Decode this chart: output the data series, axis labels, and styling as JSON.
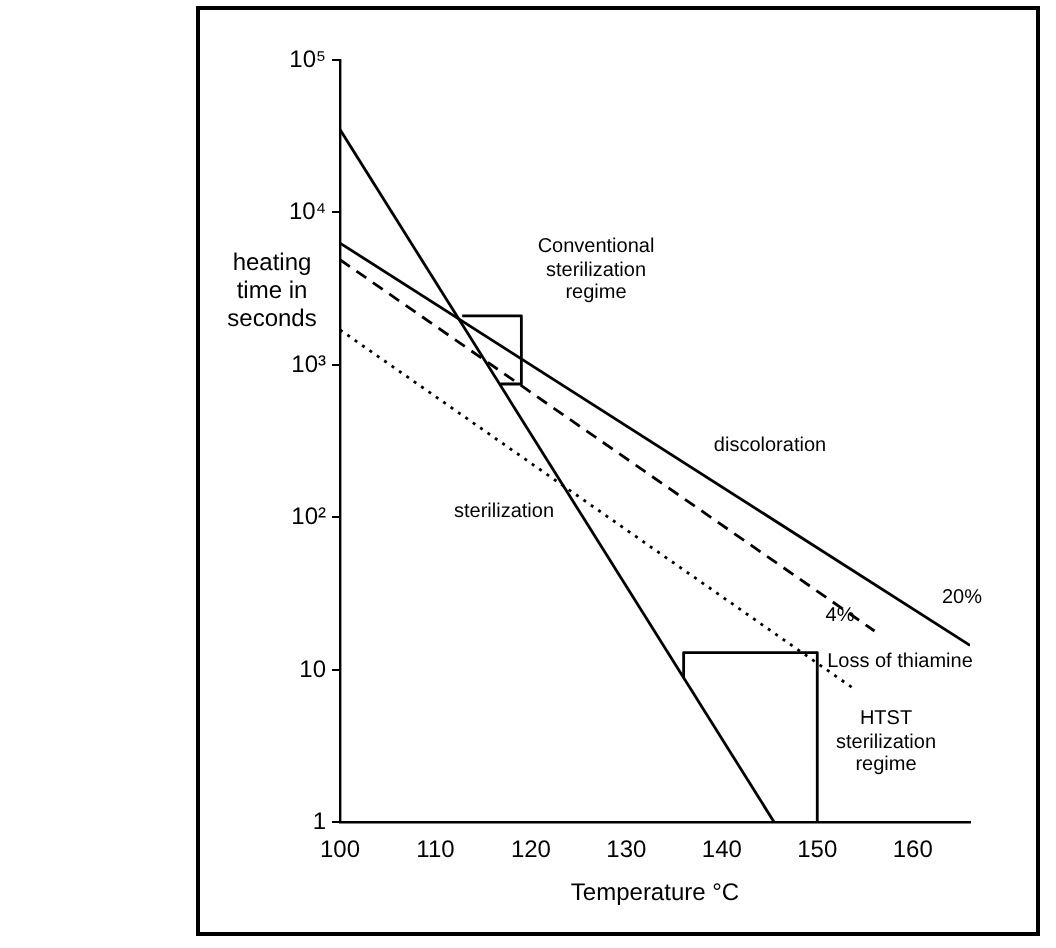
{
  "chart_data": {
    "type": "line",
    "xlabel": "Temperature °C",
    "ylabel": "heating time in seconds",
    "log": "y",
    "grid": false,
    "legend": false,
    "marker": "none",
    "xlim": [
      100,
      166
    ],
    "xticks": [
      100,
      110,
      120,
      130,
      140,
      150,
      160
    ],
    "ylim": [
      1,
      100000
    ],
    "yticks": [
      1,
      10,
      {
        "value": 100,
        "label": "10²"
      },
      {
        "value": 1000,
        "label": "10³"
      },
      {
        "value": 10000,
        "label": "10⁴"
      },
      {
        "value": 100000,
        "label": "10⁵"
      }
    ],
    "series": [
      {
        "color": "#000000",
        "line_style": "solid",
        "x": [
          112.8,
          119,
          119,
          116.8
        ],
        "values": [
          2100,
          2100,
          750,
          750
        ]
      },
      {
        "color": "#000000",
        "line_style": "solid",
        "x": [
          136,
          136,
          150,
          150
        ],
        "values": [
          8.9,
          13,
          13,
          1
        ]
      },
      {
        "color": "#000000",
        "line_style": "solid",
        "x": [
          100,
          145.5
        ],
        "values": [
          35000,
          1
        ]
      },
      {
        "color": "#000000",
        "line_style": "solid",
        "x": [
          100,
          166
        ],
        "values": [
          6300,
          14.5
        ]
      },
      {
        "color": "#000000",
        "line_style": "dashed",
        "x": [
          100,
          156
        ],
        "values": [
          4900,
          18
        ]
      },
      {
        "color": "#000000",
        "line_style": "dotted",
        "x": [
          100,
          154
        ],
        "values": [
          1700,
          7.4
        ]
      }
    ],
    "annotations": [
      "Conventional sterilization regime",
      "discoloration",
      "sterilization",
      "20%",
      "4%",
      "Loss of thiamine",
      "HTST sterilization regime"
    ]
  }
}
